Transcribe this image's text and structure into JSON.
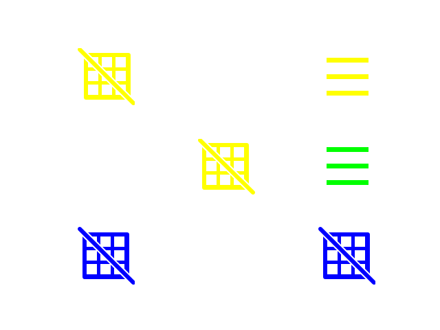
{
  "colors": {
    "yellow": "#ffff00",
    "green": "#00ff00",
    "blue": "#0000ff",
    "background": "#ffffff"
  },
  "icons": [
    {
      "name": "grid-off-icon",
      "color": "yellow",
      "row": 1,
      "col": 1
    },
    {
      "name": "menu-icon",
      "color": "yellow",
      "row": 1,
      "col": 3
    },
    {
      "name": "grid-off-icon",
      "color": "yellow",
      "row": 2,
      "col": 2
    },
    {
      "name": "menu-icon",
      "color": "green",
      "row": 2,
      "col": 3
    },
    {
      "name": "grid-off-icon",
      "color": "blue",
      "row": 3,
      "col": 1
    },
    {
      "name": "grid-off-icon",
      "color": "blue",
      "row": 3,
      "col": 3
    }
  ]
}
